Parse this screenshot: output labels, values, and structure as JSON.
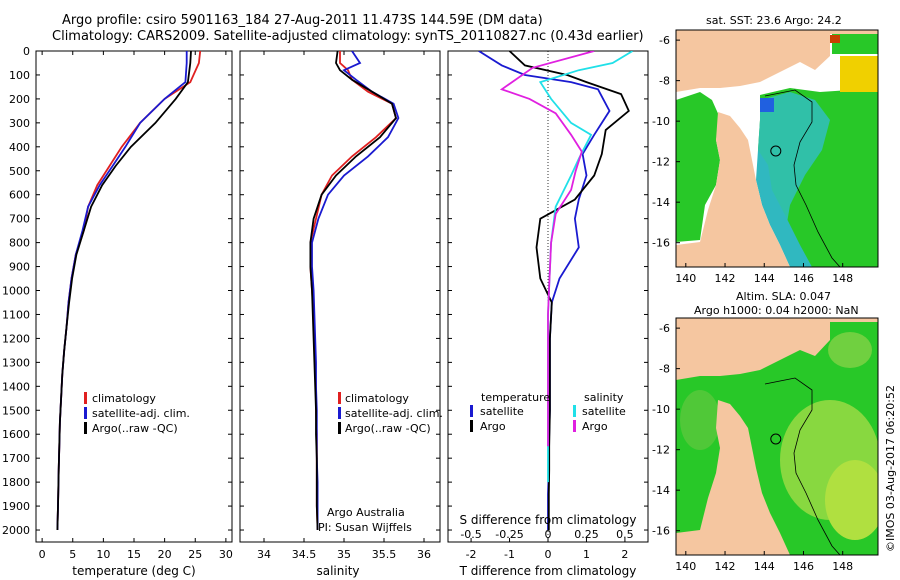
{
  "header": {
    "line1": "Argo profile: csiro 5901163_184 27-Aug-2011 11.473S 144.59E (DM data)",
    "line2": "Climatology: CARS2009. Satellite-adjusted climatology: synTS_20110827.nc (0.43d earlier)"
  },
  "colors": {
    "climatology": "#e02020",
    "satellite": "#1a1ad0",
    "argo": "#000000",
    "sat_salinity": "#20e0e8",
    "argo_salinity": "#e020e0",
    "land": "#f5c6a0",
    "ocean_green": "#28c828",
    "ocean_cyan": "#30b8c0"
  },
  "depth_axis": {
    "ticks": [
      "0",
      "100",
      "200",
      "300",
      "400",
      "500",
      "600",
      "700",
      "800",
      "900",
      "1000",
      "1100",
      "1200",
      "1300",
      "1400",
      "1500",
      "1600",
      "1700",
      "1800",
      "1900",
      "2000"
    ],
    "min": 0,
    "max": 2050
  },
  "chart_data": [
    {
      "type": "line",
      "panel": "temperature",
      "xlabel": "temperature (deg C)",
      "xlim": [
        -1,
        31
      ],
      "xticks": [
        "0",
        "5",
        "10",
        "15",
        "20",
        "25",
        "30"
      ],
      "xtick_values": [
        0,
        5,
        10,
        15,
        20,
        25,
        30
      ],
      "legend": [
        "climatology",
        "satellite-adj. clim.",
        "Argo(..raw -QC)"
      ],
      "series": [
        {
          "name": "climatology",
          "color": "#e02020",
          "x": [
            25.8,
            25.6,
            24.2,
            20,
            16,
            13,
            11,
            9,
            7.5,
            6.8,
            5.5,
            4.8,
            4.3,
            4,
            3.6,
            3.3,
            3.1,
            2.9,
            2.8,
            2.7,
            2.6,
            2.5
          ],
          "y": [
            0,
            50,
            130,
            200,
            300,
            400,
            480,
            560,
            650,
            750,
            850,
            950,
            1050,
            1150,
            1250,
            1350,
            1450,
            1550,
            1650,
            1750,
            1900,
            2000
          ]
        },
        {
          "name": "satellite-adj. clim.",
          "color": "#1a1ad0",
          "x": [
            23.6,
            23.6,
            23.4,
            20,
            16,
            13.6,
            11.5,
            9.4,
            7.5,
            6.6,
            5.5,
            4.8,
            4.3,
            4,
            3.6,
            3.3,
            3.1,
            2.9,
            2.8,
            2.7,
            2.6,
            2.5
          ],
          "y": [
            0,
            50,
            130,
            200,
            300,
            400,
            480,
            560,
            650,
            750,
            850,
            950,
            1050,
            1150,
            1250,
            1350,
            1450,
            1550,
            1650,
            1750,
            1900,
            2000
          ]
        },
        {
          "name": "Argo",
          "color": "#000000",
          "x": [
            24.3,
            24.2,
            23.8,
            21.8,
            18.5,
            14.5,
            12,
            9.8,
            8,
            6.8,
            5.6,
            4.9,
            4.4,
            4,
            3.6,
            3.3,
            3.1,
            2.9,
            2.8,
            2.7,
            2.6,
            2.5
          ],
          "y": [
            0,
            50,
            130,
            200,
            300,
            400,
            480,
            560,
            650,
            750,
            850,
            950,
            1050,
            1150,
            1250,
            1350,
            1450,
            1550,
            1650,
            1750,
            1900,
            2000
          ]
        }
      ]
    },
    {
      "type": "line",
      "panel": "salinity",
      "xlabel": "salinity",
      "xlim": [
        33.7,
        36.2
      ],
      "xticks": [
        "34",
        "34.5",
        "35",
        "35.5",
        "36"
      ],
      "xtick_values": [
        34,
        34.5,
        35,
        35.5,
        36
      ],
      "legend": [
        "climatology",
        "satellite-adj. clim.",
        "Argo(..raw -QC)"
      ],
      "footnote": [
        "Argo Australia",
        "PI: Susan Wijffels"
      ],
      "series": [
        {
          "name": "climatology",
          "color": "#e02020",
          "x": [
            34.95,
            34.95,
            35.05,
            35.1,
            35.3,
            35.6,
            35.65,
            35.4,
            35.1,
            34.85,
            34.72,
            34.65,
            34.58,
            34.58,
            34.6,
            34.62,
            34.63,
            34.64,
            34.65,
            34.65,
            34.66,
            34.66,
            34.66,
            34.66,
            34.67
          ],
          "y": [
            0,
            50,
            80,
            120,
            170,
            220,
            280,
            360,
            440,
            520,
            600,
            700,
            800,
            900,
            1000,
            1100,
            1200,
            1300,
            1400,
            1500,
            1600,
            1700,
            1800,
            1900,
            2000
          ]
        },
        {
          "name": "satellite-adj. clim.",
          "color": "#1a1ad0",
          "x": [
            35.1,
            35.2,
            35.0,
            35.15,
            35.35,
            35.62,
            35.68,
            35.55,
            35.3,
            35.0,
            34.8,
            34.68,
            34.6,
            34.6,
            34.62,
            34.63,
            34.64,
            34.65,
            34.65,
            34.66,
            34.66,
            34.66,
            34.67,
            34.67,
            34.67
          ],
          "y": [
            0,
            50,
            80,
            120,
            170,
            220,
            280,
            360,
            440,
            520,
            600,
            700,
            800,
            900,
            1000,
            1100,
            1200,
            1300,
            1400,
            1500,
            1600,
            1700,
            1800,
            1900,
            2000
          ]
        },
        {
          "name": "Argo",
          "color": "#000000",
          "x": [
            34.92,
            34.9,
            34.95,
            35.1,
            35.35,
            35.6,
            35.65,
            35.45,
            35.15,
            34.9,
            34.72,
            34.62,
            34.58,
            34.58,
            34.6,
            34.61,
            34.62,
            34.63,
            34.64,
            34.65,
            34.65,
            34.66,
            34.66,
            34.66,
            34.67
          ],
          "y": [
            0,
            50,
            80,
            120,
            170,
            220,
            280,
            360,
            440,
            520,
            600,
            700,
            800,
            900,
            1000,
            1100,
            1200,
            1300,
            1400,
            1500,
            1600,
            1700,
            1800,
            1900,
            2000
          ]
        }
      ]
    },
    {
      "type": "line",
      "panel": "differences",
      "xlabel_top": "S difference from climatology",
      "xlabel": "T difference from climatology",
      "xlim": [
        -2.6,
        2.6
      ],
      "xticks_t": [
        "-2",
        "-1",
        "0",
        "1",
        "2"
      ],
      "xtick_values_t": [
        -2,
        -1,
        0,
        1,
        2
      ],
      "xticks_s": [
        "-0.5",
        "-0.25",
        "0",
        "0.25",
        "0.5"
      ],
      "xtick_values_s": [
        -0.5,
        -0.25,
        0,
        0.25,
        0.5
      ],
      "legend_temperature_title": "temperature",
      "legend_salinity_title": "salinity",
      "legend_temperature": [
        "satellite",
        "Argo"
      ],
      "legend_salinity": [
        "satellite",
        "Argo"
      ],
      "series": [
        {
          "name": "T satellite",
          "color": "#1a1ad0",
          "x": [
            -1.8,
            -1.2,
            -0.6,
            0.6,
            1.3,
            1.6,
            1.2,
            0.9,
            1.0,
            0.8,
            0.7,
            0.8,
            0.3,
            0.1,
            0.05,
            0.05,
            0.05,
            0.02,
            0.02,
            0,
            0,
            0
          ],
          "y": [
            0,
            60,
            100,
            130,
            160,
            250,
            350,
            430,
            520,
            620,
            700,
            820,
            950,
            1050,
            1200,
            1350,
            1500,
            1650,
            1750,
            1850,
            1950,
            2000
          ]
        },
        {
          "name": "T Argo",
          "color": "#000000",
          "x": [
            -1.0,
            -0.6,
            0.5,
            1.0,
            1.9,
            2.1,
            1.5,
            1.4,
            1.2,
            0.7,
            -0.2,
            -0.3,
            -0.2,
            0.1,
            0.05,
            0.05,
            0.05,
            0.03,
            0.03,
            0.02,
            0.02,
            0.02
          ],
          "y": [
            0,
            60,
            100,
            130,
            180,
            250,
            330,
            430,
            520,
            620,
            700,
            820,
            950,
            1050,
            1200,
            1350,
            1500,
            1650,
            1750,
            1850,
            1950,
            2000
          ]
        },
        {
          "name": "S satellite",
          "color": "#20e0e8",
          "x": [
            0.55,
            0.42,
            0.2,
            -0.05,
            0.02,
            0.15,
            0.28,
            0.2,
            0.15,
            0.05,
            0.02,
            0.01,
            0,
            0,
            0,
            0,
            0
          ],
          "y": [
            0,
            50,
            80,
            130,
            200,
            300,
            350,
            450,
            520,
            650,
            800,
            950,
            1100,
            1300,
            1500,
            1700,
            1800
          ]
        },
        {
          "name": "S Argo",
          "color": "#e020e0",
          "x": [
            0.3,
            -0.1,
            -0.3,
            -0.12,
            0.05,
            0.15,
            0.22,
            0.18,
            0.15,
            0.05,
            0.02,
            0.01,
            0,
            0,
            0,
            0,
            0
          ],
          "y": [
            0,
            70,
            160,
            200,
            260,
            350,
            420,
            500,
            580,
            680,
            800,
            950,
            1100,
            1300,
            1500,
            1600,
            1650
          ]
        }
      ]
    }
  ],
  "maps": {
    "top": {
      "title": "sat. SST: 23.6  Argo: 24.2",
      "yticks": [
        "-6",
        "-8",
        "-10",
        "-12",
        "-14",
        "-16"
      ],
      "xticks": [
        "140",
        "142",
        "144",
        "146",
        "148"
      ],
      "lon_range": [
        139.5,
        149.8
      ],
      "lat_range": [
        -5.5,
        -17.2
      ],
      "profile_lon": 144.59,
      "profile_lat": -11.473
    },
    "bottom": {
      "title_line1": "Altim. SLA: 0.047",
      "title_line2": "Argo h1000: 0.04  h2000: NaN",
      "yticks": [
        "-6",
        "-8",
        "-10",
        "-12",
        "-14",
        "-16"
      ],
      "xticks": [
        "140",
        "142",
        "144",
        "146",
        "148"
      ],
      "lon_range": [
        139.5,
        149.8
      ],
      "lat_range": [
        -5.5,
        -17.2
      ],
      "profile_lon": 144.59,
      "profile_lat": -11.473
    }
  },
  "credit": "©IMOS 03-Aug-2017 06:20:52"
}
